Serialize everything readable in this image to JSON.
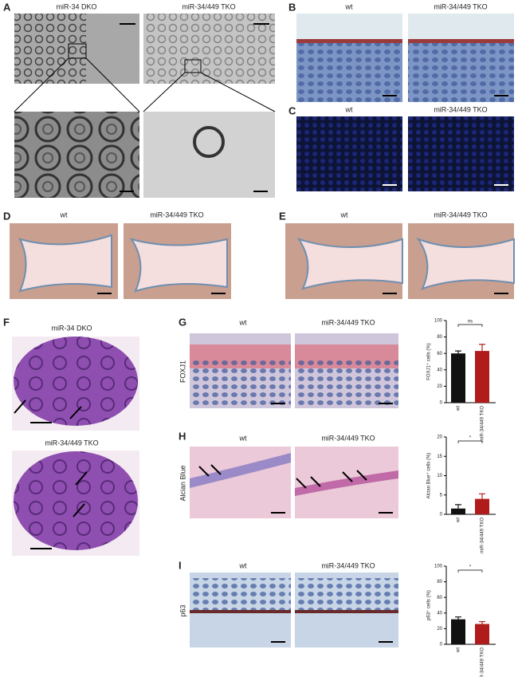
{
  "panels": {
    "a": {
      "label": "A",
      "left": "miR-34 DKO",
      "right": "miR-34/449 TKO"
    },
    "b": {
      "label": "B",
      "left": "wt",
      "right": "miR-34/449 TKO"
    },
    "c": {
      "label": "C",
      "left": "wt",
      "right": "miR-34/449 TKO"
    },
    "d": {
      "label": "D",
      "left": "wt",
      "right": "miR-34/449 TKO"
    },
    "e": {
      "label": "E",
      "left": "wt",
      "right": "miR-34/449 TKO"
    },
    "f": {
      "label": "F",
      "top": "miR-34 DKO",
      "bottom": "miR-34/449 TKO"
    },
    "g": {
      "label": "G",
      "left": "wt",
      "right": "miR-34/449 TKO",
      "row": "FOXJ1"
    },
    "h": {
      "label": "H",
      "left": "wt",
      "right": "miR-34/449 TKO",
      "row": "Alcian Blue"
    },
    "i": {
      "label": "I",
      "left": "wt",
      "right": "miR-34/449 TKO",
      "row": "p63"
    }
  },
  "chart_data": [
    {
      "type": "bar",
      "ylabel": "FOXJ1⁺ cells (%)",
      "categories": [
        "wt",
        "miR-34/449 TKO"
      ],
      "values": [
        60,
        63
      ],
      "errors": [
        3,
        8
      ],
      "colors": [
        "#111111",
        "#b01c1c"
      ],
      "ylim": [
        0,
        100
      ],
      "yticks": [
        0,
        20,
        40,
        60,
        80,
        100
      ],
      "annotation": "ns"
    },
    {
      "type": "bar",
      "ylabel": "Alcian Blue⁺ cells (%)",
      "categories": [
        "wt",
        "miR-34/449 TKO"
      ],
      "values": [
        1.5,
        4
      ],
      "errors": [
        1,
        1.3
      ],
      "colors": [
        "#111111",
        "#b01c1c"
      ],
      "ylim": [
        0,
        20
      ],
      "yticks": [
        0,
        5,
        10,
        15,
        20
      ],
      "annotation": "*"
    },
    {
      "type": "bar",
      "ylabel": "p63⁺ cells (%)",
      "categories": [
        "wt",
        "miR-34/449 TKO"
      ],
      "values": [
        32,
        26
      ],
      "errors": [
        3,
        3
      ],
      "colors": [
        "#111111",
        "#b01c1c"
      ],
      "ylim": [
        0,
        100
      ],
      "yticks": [
        0,
        20,
        40,
        60,
        80,
        100
      ],
      "annotation": "*"
    }
  ]
}
